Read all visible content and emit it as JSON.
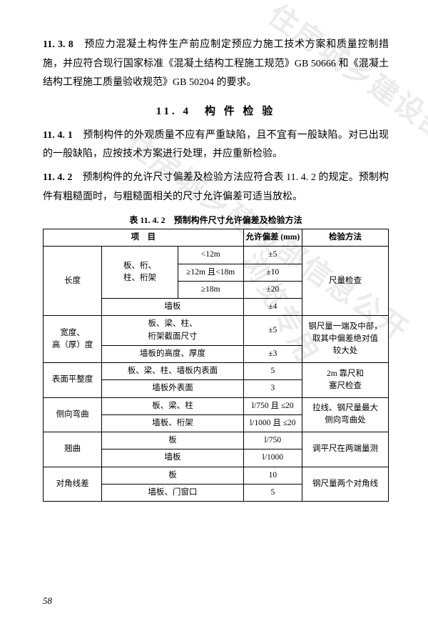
{
  "para1_num": "11. 3. 8",
  "para1": "　预应力混凝土构件生产前应制定预应力施工技术方案和质量控制措施，并应符合现行国家标准《混凝土结构工程施工规范》GB 50666 和《混凝土结构工程施工质量验收规范》GB 50204 的要求。",
  "section_title": "11. 4　构 件 检 验",
  "para2_num": "11. 4. 1",
  "para2": "　预制构件的外观质量不应有严重缺陷，且不宜有一般缺陷。对已出现的一般缺陷，应按技术方案进行处理，并应重新检验。",
  "para3_num": "11. 4. 2",
  "para3": "　预制构件的允许尺寸偏差及检验方法应符合表 11. 4. 2 的规定。预制构件有粗糙面时，与粗糙面相关的尺寸允许偏差可适当放松。",
  "table_title": "表 11. 4. 2　预制构件尺寸允许偏差及检验方法",
  "th": {
    "item": "项　目",
    "tol": "允许偏差 (mm)",
    "method": "检验方法"
  },
  "r": {
    "len": "长度",
    "bct": "板、桁、\n柱、桁架",
    "lt12": "<12m",
    "ge12lt18": "≥12m 且<18m",
    "ge18": "≥18m",
    "v_lt12": "±5",
    "v_ge12lt18": "±10",
    "v_ge18": "±20",
    "len_m": "尺量检查",
    "wall": "墙板",
    "v_wall_len": "±4",
    "wh": "宽度、\n高（厚）度",
    "bct2": "板、梁、柱、\n桁架截面尺寸",
    "v_bct2": "±5",
    "wh_m": "钢尺量一端及中部，\n取其中偏差绝对值\n较大处",
    "wall_ht": "墙板的高度、厚度",
    "v_wall_ht": "±3",
    "flat": "表面平整度",
    "bct_in": "板、梁、柱、墙板内表面",
    "v_in": "5",
    "flat_m": "2m 靠尺和\n塞尺检查",
    "wall_out": "墙板外表面",
    "v_out": "3",
    "lat": "侧向弯曲",
    "bct3": "板、梁、柱",
    "v_lat1": "l/750 且 ≤20",
    "lat_m": "拉线、钢尺量最大\n侧向弯曲处",
    "wall_truss": "墙板、桁架",
    "v_lat2": "l/1000 且 ≤20",
    "warp": "翘曲",
    "plate": "板",
    "v_warp1": "l/750",
    "warp_m": "调平尺在两端量测",
    "v_warp2": "l/1000",
    "diag": "对角线差",
    "v_diag1": "10",
    "diag_m": "钢尺量两个对角线",
    "wall_door": "墙板、门窗口",
    "v_diag2": "5"
  },
  "watermark1": "住房城乡建设部信息公开",
  "watermark2": "住房城乡建设部信息公开",
  "watermark3": "浏览专用",
  "page_number": "58"
}
